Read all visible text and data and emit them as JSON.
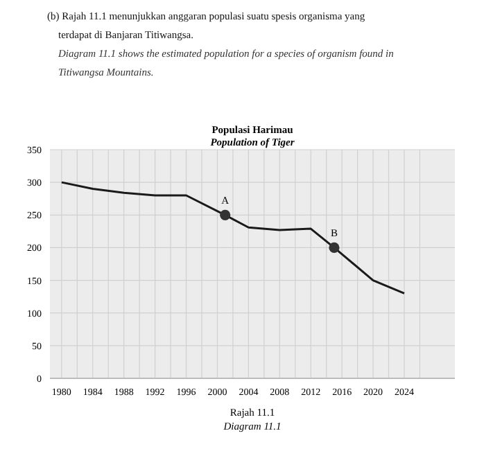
{
  "chart_data": {
    "type": "line",
    "title": "Populasi Harimau",
    "subtitle": "Population of Tiger",
    "annotations": [
      "(b) Rajah 11.1 menunjukkan anggaran populasi suatu spesis organisma yang terdapat di Banjaran Titiwangsa.",
      "Diagram 11.1 shows the estimated population for a species of organism found in Titiwangsa Mountains.",
      "Rajah 11.1",
      "Diagram 11.1",
      {
        "text": "A",
        "x": 2001,
        "y": 250
      },
      {
        "text": "B",
        "x": 2015,
        "y": 200
      }
    ],
    "series": [
      {
        "color": "#1a1a1a",
        "x": [
          1980,
          1984,
          1988,
          1992,
          1996,
          2001,
          2004,
          2008,
          2012,
          2015,
          2020,
          2024
        ],
        "values": [
          300,
          290,
          284,
          280,
          280,
          250,
          231,
          227,
          229,
          200,
          150,
          130
        ]
      },
      {
        "type": "scatter",
        "color": "#333333",
        "marker": "circle",
        "x": [
          2001,
          2015
        ],
        "values": [
          250,
          200
        ]
      }
    ],
    "xlim": [
      1978.5,
      2030.5
    ],
    "ylim": [
      0,
      350
    ],
    "xticks": [
      1980,
      {
        "value": 1982,
        "label": null
      },
      1984,
      {
        "value": 1986,
        "label": null
      },
      1988,
      {
        "value": 1990,
        "label": null
      },
      1992,
      {
        "value": 1994,
        "label": null
      },
      1996,
      {
        "value": 1998,
        "label": null
      },
      2000,
      {
        "value": 2002,
        "label": null
      },
      2004,
      {
        "value": 2006,
        "label": null
      },
      2008,
      {
        "value": 2010,
        "label": null
      },
      2012,
      {
        "value": 2014,
        "label": null
      },
      2016,
      {
        "value": 2018,
        "label": null
      },
      2020,
      {
        "value": 2022,
        "label": null
      },
      2024,
      {
        "value": 2026,
        "label": null
      }
    ],
    "yticks": [
      0,
      50,
      100,
      150,
      200,
      250,
      300,
      350
    ],
    "grid": true
  }
}
